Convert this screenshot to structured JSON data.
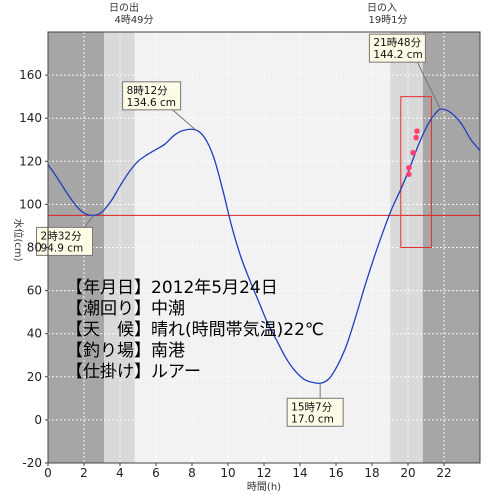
{
  "chart_data": {
    "type": "line",
    "xlabel": "時間(h)",
    "ylabel": "水位(cm)",
    "xlim": [
      0,
      24
    ],
    "ylim": [
      -20,
      180
    ],
    "x_ticks": [
      0,
      2,
      4,
      6,
      8,
      10,
      12,
      14,
      16,
      18,
      20,
      22
    ],
    "y_ticks": [
      -20,
      0,
      20,
      40,
      60,
      80,
      100,
      120,
      140,
      160
    ],
    "x_tick_labels": [
      "0",
      "2",
      "4",
      "6",
      "8",
      "10",
      "12",
      "14",
      "16",
      "18",
      "20",
      "22"
    ],
    "y_tick_labels": [
      "-20",
      "0",
      "20",
      "40",
      "60",
      "80",
      "100",
      "120",
      "140",
      "160"
    ],
    "grid": true,
    "sunrise": {
      "label_line1": "日の出",
      "label_line2": "4時49分",
      "hour": 4.82
    },
    "sunset": {
      "label_line1": "日の入",
      "label_line2": "19時1分",
      "hour": 19.02
    },
    "mean_level": 94.9,
    "series": [
      {
        "x": [
          0,
          0.5,
          1,
          1.5,
          2,
          2.53,
          3,
          3.5,
          4,
          4.5,
          5,
          5.5,
          6,
          6.5,
          7,
          7.5,
          8.2,
          8.7,
          9.2,
          9.7,
          10.2,
          10.7,
          11.2,
          11.7,
          12.2,
          12.7,
          13.2,
          13.7,
          14.2,
          14.6,
          15.12,
          15.6,
          16.1,
          16.6,
          17.1,
          17.6,
          18.1,
          18.6,
          19.1,
          19.6,
          20.1,
          20.6,
          21.1,
          21.5,
          21.8,
          22.2,
          22.6,
          23.0,
          23.5,
          24
        ],
        "values": [
          118.5,
          112.5,
          106,
          100,
          96,
          94.9,
          96.5,
          101.5,
          108.5,
          115,
          120,
          123,
          125.5,
          128,
          132,
          134.3,
          134.6,
          131,
          122,
          107,
          90,
          76,
          65,
          55,
          45,
          37,
          29,
          23,
          19,
          17.6,
          17.0,
          19,
          25.5,
          35,
          48,
          62,
          75,
          87,
          98,
          107,
          117,
          128,
          137,
          142,
          144.2,
          143.5,
          141,
          137,
          130,
          125
        ]
      }
    ],
    "callouts": [
      {
        "line1": "8時12分",
        "line2": "134.6 cm",
        "x": 8.2,
        "y": 134.6
      },
      {
        "line1": "2時32分",
        "line2": "94.9 cm",
        "x": 2.53,
        "y": 94.9
      },
      {
        "line1": "15時7分",
        "line2": "17.0 cm",
        "x": 15.12,
        "y": 17.0
      },
      {
        "line1": "21時48分",
        "line2": "144.2 cm",
        "x": 21.8,
        "y": 144.2
      }
    ],
    "fishing_window": {
      "x_start": 19.6,
      "x_end": 21.3,
      "y_low": 80,
      "y_high": 150
    },
    "catches": [
      {
        "x": 20.05,
        "y": 114
      },
      {
        "x": 20.05,
        "y": 117
      },
      {
        "x": 20.28,
        "y": 124
      },
      {
        "x": 20.45,
        "y": 131
      },
      {
        "x": 20.5,
        "y": 134
      }
    ],
    "colors": {
      "night": "#a6a6a6",
      "twilight": "#d9d9d9",
      "day": "#f2f2f2",
      "tide_line": "#1f3fbf",
      "mean_line": "#e02020",
      "fishing_box": "#e03030",
      "catch_marker": "#ff4070",
      "callout_fill": "#fdfbe6"
    }
  },
  "info": {
    "date": "【年月日】2012年5月24日",
    "tide": "【潮回り】中潮",
    "weather": "【天　候】晴れ(時間帯気温)22℃",
    "spot": "【釣り場】南港",
    "tackle": "【仕掛け】ルアー"
  }
}
